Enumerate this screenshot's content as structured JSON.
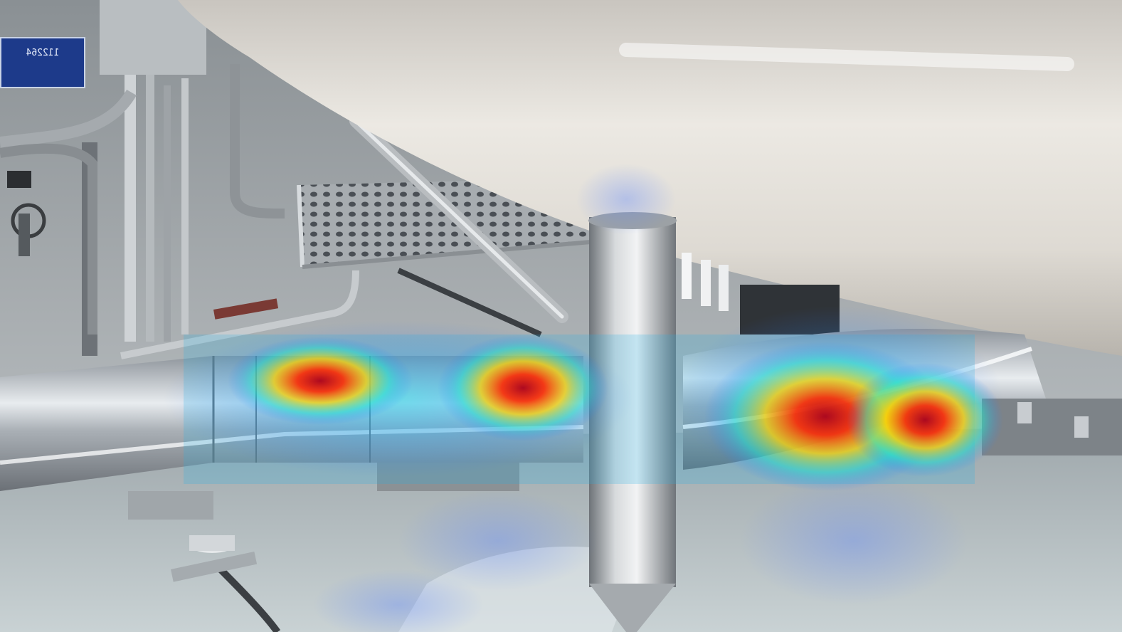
{
  "scene": {
    "sign_plate": {
      "line1": "",
      "line2": "112264"
    }
  },
  "colors": {
    "heat_hot": "#c0001a",
    "heat_warm": "#ff3d00",
    "heat_mid": "#ffd400",
    "heat_cool": "#22e0c8",
    "heat_cold": "#2a7dff",
    "steel_light": "#e9ecef",
    "steel_dark": "#7d8289",
    "floor": "#b9c2c6"
  }
}
